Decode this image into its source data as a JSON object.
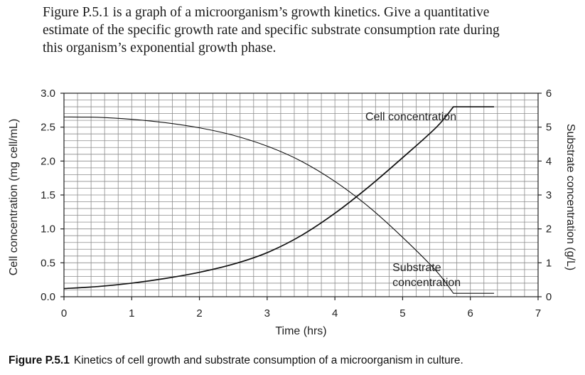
{
  "question": {
    "lines": [
      "Figure P.5.1 is a graph of a microorganism’s growth kinetics. Give a quantitative",
      "estimate of the specific growth rate and specific substrate consumption rate during",
      "this organism’s exponential growth phase."
    ]
  },
  "caption": {
    "label": "Figure P.5.1",
    "text": "Kinetics of cell growth and substrate consumption of a microorganism in culture."
  },
  "chart_data": {
    "type": "line",
    "xlabel": "Time (hrs)",
    "ylabel_left": "Cell concentration (mg cell/mL)",
    "ylabel_right": "Substrate concentration (g/L)",
    "xlim": [
      0,
      7
    ],
    "ylim_left": [
      0,
      3.0
    ],
    "ylim_right": [
      0,
      6
    ],
    "x_ticks": [
      "0",
      "1",
      "2",
      "3",
      "4",
      "5",
      "6",
      "7"
    ],
    "y_ticks_left": [
      "0.0",
      "0.5",
      "1.0",
      "1.5",
      "2.0",
      "2.5",
      "3.0"
    ],
    "y_ticks_right": [
      "0",
      "1",
      "2",
      "3",
      "4",
      "5",
      "6"
    ],
    "grid": true,
    "series": [
      {
        "name": "Cell concentration",
        "axis": "left",
        "x": [
          0,
          0.5,
          1,
          1.5,
          2,
          2.5,
          3,
          3.5,
          4,
          4.5,
          5,
          5.5,
          5.75,
          6,
          6.35
        ],
        "y": [
          0.12,
          0.15,
          0.2,
          0.27,
          0.36,
          0.48,
          0.65,
          0.9,
          1.23,
          1.62,
          2.05,
          2.5,
          2.8,
          2.8,
          2.8
        ]
      },
      {
        "name": "Substrate concentration",
        "axis": "right",
        "x": [
          0,
          0.5,
          1,
          1.5,
          2,
          2.5,
          3,
          3.5,
          4,
          4.5,
          5,
          5.5,
          5.75,
          6,
          6.35
        ],
        "y": [
          5.3,
          5.29,
          5.23,
          5.13,
          4.98,
          4.76,
          4.44,
          4.0,
          3.4,
          2.65,
          1.75,
          0.75,
          0.1,
          0.1,
          0.1
        ]
      }
    ],
    "annotations": [
      {
        "lines": [
          "Cell concentration"
        ],
        "x": 4.45,
        "y_left": 2.6
      },
      {
        "lines": [
          "Substrate",
          "concentration"
        ],
        "x": 4.85,
        "y_left": 0.38
      }
    ]
  }
}
